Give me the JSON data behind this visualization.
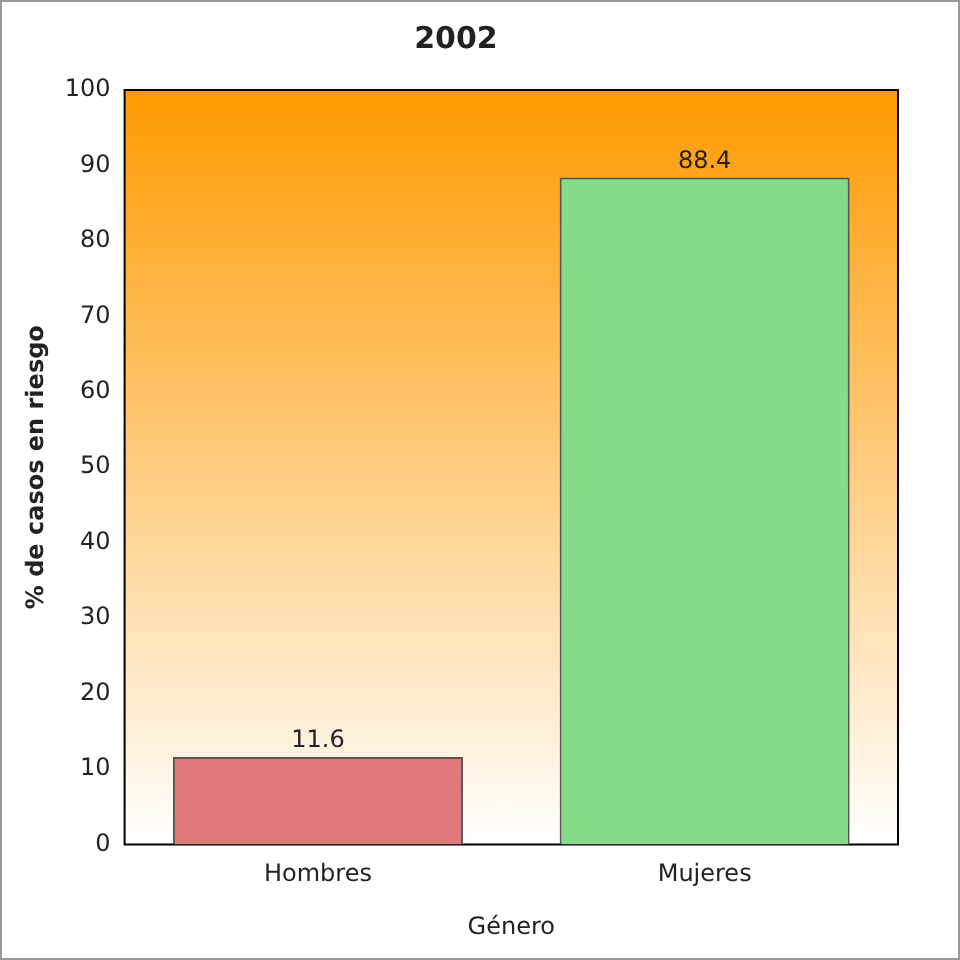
{
  "chart_data": {
    "type": "bar",
    "title": "2002",
    "xlabel": "Género",
    "ylabel": "% de casos en riesgo",
    "categories": [
      "Hombres",
      "Mujeres"
    ],
    "values": [
      11.6,
      88.4
    ],
    "colors": [
      "#e07a7a",
      "#86dc86"
    ],
    "ylim": [
      0,
      100
    ],
    "yticks": [
      0,
      10,
      20,
      30,
      40,
      50,
      60,
      70,
      80,
      90,
      100
    ],
    "grid": false,
    "legend": false,
    "data_labels": true
  }
}
